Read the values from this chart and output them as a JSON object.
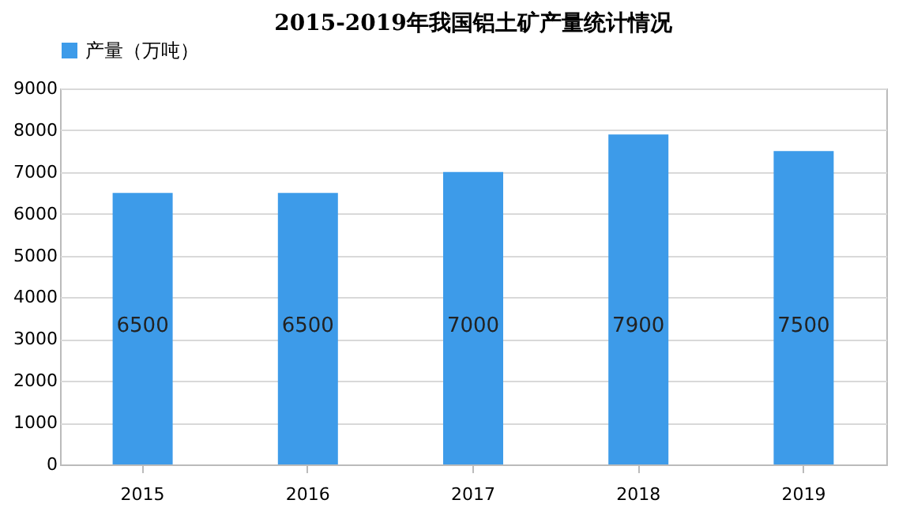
{
  "chart_data": {
    "type": "bar",
    "title": "2015-2019年我国铝土矿产量统计情况",
    "categories": [
      "2015",
      "2016",
      "2017",
      "2018",
      "2019"
    ],
    "series": [
      {
        "name": "产量（万吨）",
        "color": "#3d9be9",
        "values": [
          6500,
          6500,
          7000,
          7900,
          7500
        ]
      }
    ],
    "ylim": [
      0,
      9000
    ],
    "yticks": [
      0,
      1000,
      2000,
      3000,
      4000,
      5000,
      6000,
      7000,
      8000,
      9000
    ],
    "grid": "y",
    "legend": "top",
    "data_labels": true
  }
}
